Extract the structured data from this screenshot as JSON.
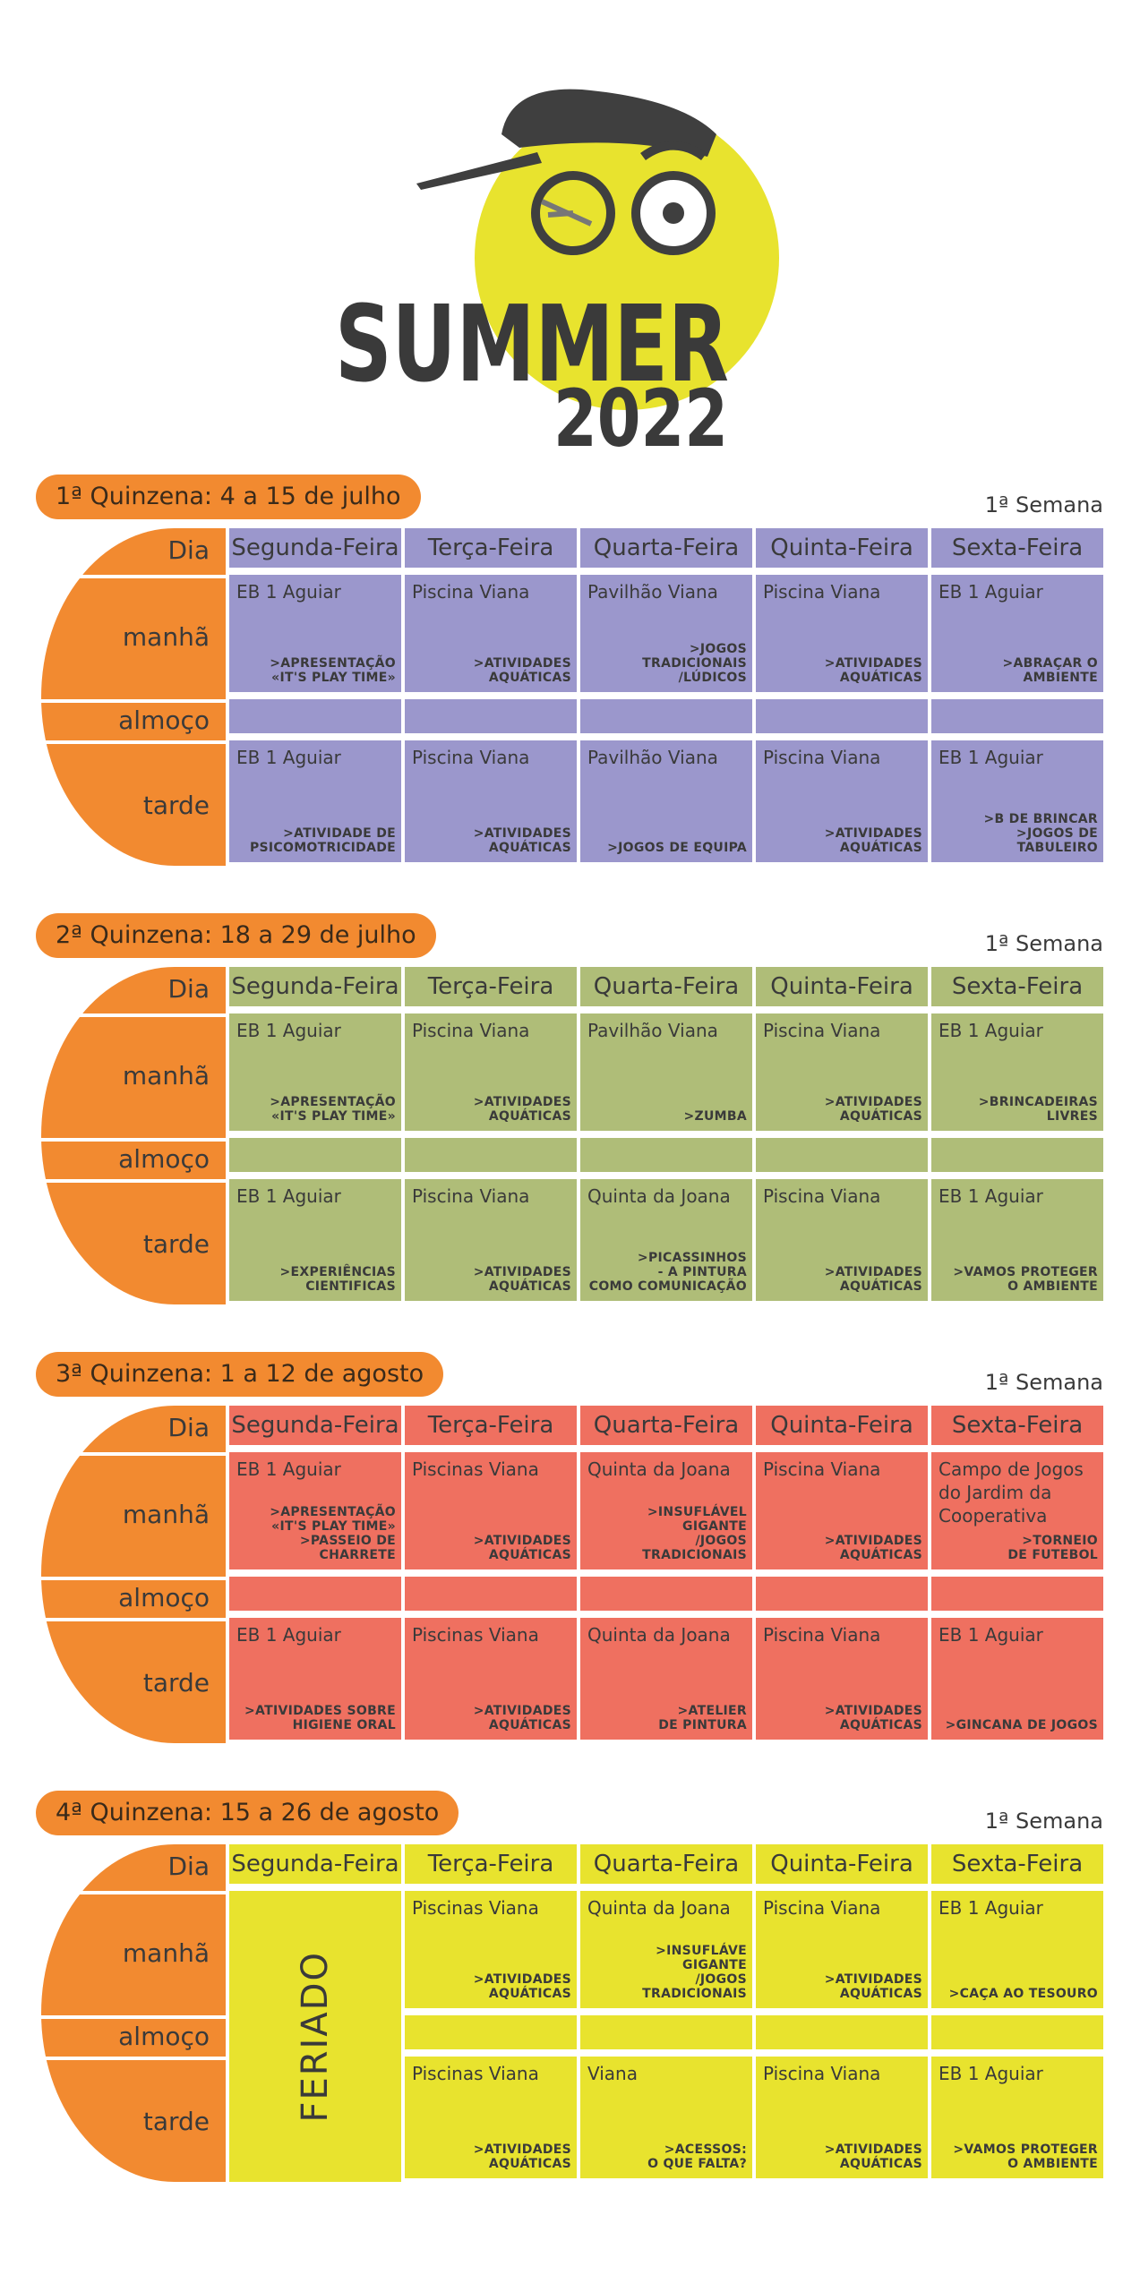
{
  "logo": {
    "word": "SUMMER",
    "year": "2022"
  },
  "sections": [
    {
      "title": "1ª Quinzena: 4 a 15 de julho",
      "week": "1ª Semana",
      "days": [
        "Dia",
        "Segunda-Feira",
        "Terça-Feira",
        "Quarta-Feira",
        "Quinta-Feira",
        "Sexta-Feira"
      ],
      "periods": [
        "manhã",
        "almoço",
        "tarde"
      ],
      "morning": [
        {
          "place": "EB 1 Aguiar",
          "activity": [
            ">APRESENTAÇÃO",
            "«IT'S PLAY TIME»"
          ]
        },
        {
          "place": "Piscina Viana",
          "activity": [
            ">ATIVIDADES",
            "AQUÁTICAS"
          ]
        },
        {
          "place": "Pavilhão Viana",
          "activity": [
            ">JOGOS",
            "TRADICIONAIS",
            "/LÚDICOS"
          ]
        },
        {
          "place": "Piscina Viana",
          "activity": [
            ">ATIVIDADES",
            "AQUÁTICAS"
          ]
        },
        {
          "place": "EB 1 Aguiar",
          "activity": [
            ">ABRAÇAR O",
            "AMBIENTE"
          ]
        }
      ],
      "afternoon": [
        {
          "place": "EB 1 Aguiar",
          "activity": [
            ">ATIVIDADE DE",
            "PSICOMOTRICIDADE"
          ]
        },
        {
          "place": "Piscina Viana",
          "activity": [
            ">ATIVIDADES",
            "AQUÁTICAS"
          ]
        },
        {
          "place": "Pavilhão Viana",
          "activity": [
            ">JOGOS DE EQUIPA"
          ]
        },
        {
          "place": "Piscina  Viana",
          "activity": [
            ">ATIVIDADES",
            "AQUÁTICAS"
          ]
        },
        {
          "place": "EB 1 Aguiar",
          "activity": [
            ">B DE BRINCAR",
            ">JOGOS DE",
            "TABULEIRO"
          ]
        }
      ]
    },
    {
      "title": "2ª Quinzena: 18 a 29 de julho",
      "week": "1ª Semana",
      "days": [
        "Dia",
        "Segunda-Feira",
        "Terça-Feira",
        "Quarta-Feira",
        "Quinta-Feira",
        "Sexta-Feira"
      ],
      "periods": [
        "manhã",
        "almoço",
        "tarde"
      ],
      "morning": [
        {
          "place": "EB 1 Aguiar",
          "activity": [
            ">APRESENTAÇÃO",
            "«IT'S PLAY TIME»"
          ]
        },
        {
          "place": "Piscina Viana",
          "activity": [
            ">ATIVIDADES",
            "AQUÁTICAS"
          ]
        },
        {
          "place": "Pavilhão Viana",
          "activity": [
            ">ZUMBA"
          ]
        },
        {
          "place": "Piscina Viana",
          "activity": [
            ">ATIVIDADES",
            "AQUÁTICAS"
          ]
        },
        {
          "place": "EB 1 Aguiar",
          "activity": [
            ">BRINCADEIRAS",
            "LIVRES"
          ]
        }
      ],
      "afternoon": [
        {
          "place": "EB 1 Aguiar",
          "activity": [
            ">EXPERIÊNCIAS",
            "CIENTIFICAS"
          ]
        },
        {
          "place": "Piscina Viana",
          "activity": [
            ">ATIVIDADES",
            "AQUÁTICAS"
          ]
        },
        {
          "place": "Quinta da Joana",
          "activity": [
            ">PICASSINHOS",
            "- A PINTURA",
            "COMO COMUNICAÇÃO"
          ]
        },
        {
          "place": "Piscina Viana",
          "activity": [
            ">ATIVIDADES",
            "AQUÁTICAS"
          ]
        },
        {
          "place": "EB 1 Aguiar",
          "activity": [
            ">VAMOS PROTEGER",
            "O AMBIENTE"
          ]
        }
      ]
    },
    {
      "title": "3ª Quinzena: 1 a 12 de agosto",
      "week": "1ª Semana",
      "days": [
        "Dia",
        "Segunda-Feira",
        "Terça-Feira",
        "Quarta-Feira",
        "Quinta-Feira",
        "Sexta-Feira"
      ],
      "periods": [
        "manhã",
        "almoço",
        "tarde"
      ],
      "morning": [
        {
          "place": "EB 1 Aguiar",
          "activity": [
            ">APRESENTAÇÃO",
            "«IT'S PLAY TIME»",
            ">PASSEIO DE",
            "CHARRETE"
          ]
        },
        {
          "place": "Piscinas Viana",
          "activity": [
            ">ATIVIDADES",
            "AQUÁTICAS"
          ]
        },
        {
          "place": "Quinta da Joana",
          "activity": [
            ">INSUFLÁVEL",
            "GIGANTE",
            "/JOGOS",
            "TRADICIONAIS"
          ]
        },
        {
          "place": "Piscina Viana",
          "activity": [
            ">ATIVIDADES",
            "AQUÁTICAS"
          ]
        },
        {
          "place": "Campo de Jogos do Jardim da Cooperativa",
          "activity": [
            ">TORNEIO",
            "DE FUTEBOL"
          ]
        }
      ],
      "afternoon": [
        {
          "place": "EB 1 Aguiar",
          "activity": [
            ">ATIVIDADES SOBRE",
            "HIGIENE ORAL"
          ]
        },
        {
          "place": "Piscinas Viana",
          "activity": [
            ">ATIVIDADES",
            "AQUÁTICAS"
          ]
        },
        {
          "place": "Quinta da Joana",
          "activity": [
            ">ATELIER",
            "DE PINTURA"
          ]
        },
        {
          "place": "Piscina Viana",
          "activity": [
            ">ATIVIDADES",
            "AQUÁTICAS"
          ]
        },
        {
          "place": "EB 1 Aguiar",
          "activity": [
            ">GINCANA DE JOGOS"
          ]
        }
      ]
    },
    {
      "title": "4ª Quinzena: 15 a 26 de agosto",
      "week": "1ª Semana",
      "days": [
        "Dia",
        "Segunda-Feira",
        "Terça-Feira",
        "Quarta-Feira",
        "Quinta-Feira",
        "Sexta-Feira"
      ],
      "periods": [
        "manhã",
        "almoço",
        "tarde"
      ],
      "holiday": "FERIADO",
      "morning": [
        {
          "place": "Piscinas Viana",
          "activity": [
            ">ATIVIDADES",
            "AQUÁTICAS"
          ]
        },
        {
          "place": "Quinta da Joana",
          "activity": [
            ">INSUFLÁVE",
            "GIGANTE",
            "/JOGOS",
            "TRADICIONAIS"
          ]
        },
        {
          "place": "Piscina Viana",
          "activity": [
            ">ATIVIDADES",
            "AQUÁTICAS"
          ]
        },
        {
          "place": "EB 1 Aguiar",
          "activity": [
            ">CAÇA AO TESOURO"
          ]
        }
      ],
      "afternoon": [
        {
          "place": "Piscinas Viana",
          "activity": [
            ">ATIVIDADES",
            "AQUÁTICAS"
          ]
        },
        {
          "place": "Viana",
          "activity": [
            ">ACESSOS:",
            "O QUE FALTA?"
          ]
        },
        {
          "place": "Piscina Viana",
          "activity": [
            ">ATIVIDADES",
            "AQUÁTICAS"
          ]
        },
        {
          "place": "EB 1 Aguiar",
          "activity": [
            ">VAMOS PROTEGER",
            "O AMBIENTE"
          ]
        }
      ]
    }
  ]
}
